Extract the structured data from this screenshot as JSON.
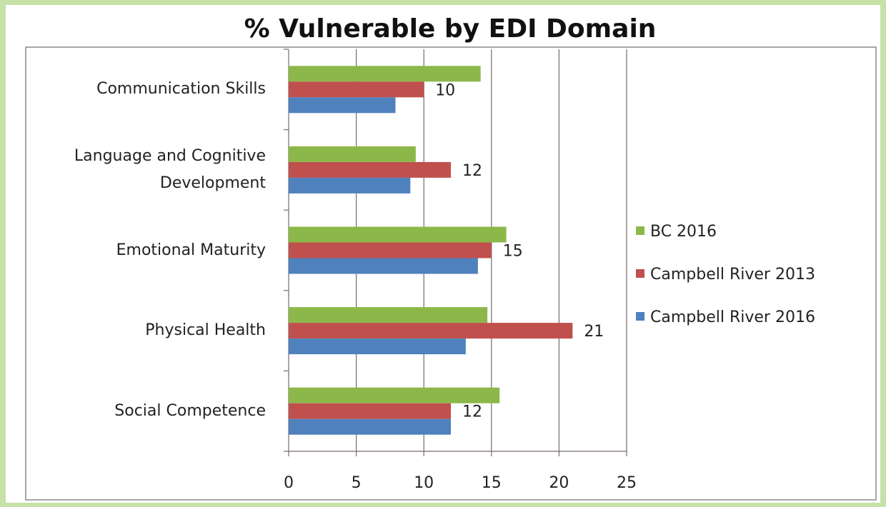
{
  "chart_data": {
    "type": "barh",
    "title": "% Vulnerable by EDI Domain",
    "categories": [
      "Communication Skills",
      "Language and Cognitive Development",
      "Emotional Maturity",
      "Physical Health",
      "Social Competence"
    ],
    "series": [
      {
        "name": "BC 2016",
        "color": "#8cb84a",
        "values": [
          14.2,
          9.4,
          16.1,
          14.7,
          15.6
        ]
      },
      {
        "name": "Campbell River 2013",
        "color": "#c0504d",
        "values": [
          10,
          12,
          15,
          21,
          12
        ],
        "data_labels": true
      },
      {
        "name": "Campbell River 2016",
        "color": "#4f81bd",
        "values": [
          7.9,
          9.0,
          14.0,
          13.1,
          12
        ]
      }
    ],
    "xlim": [
      0,
      25
    ],
    "xticks": [
      0,
      5,
      10,
      15,
      20,
      25
    ],
    "grid": true,
    "legend": "right"
  }
}
